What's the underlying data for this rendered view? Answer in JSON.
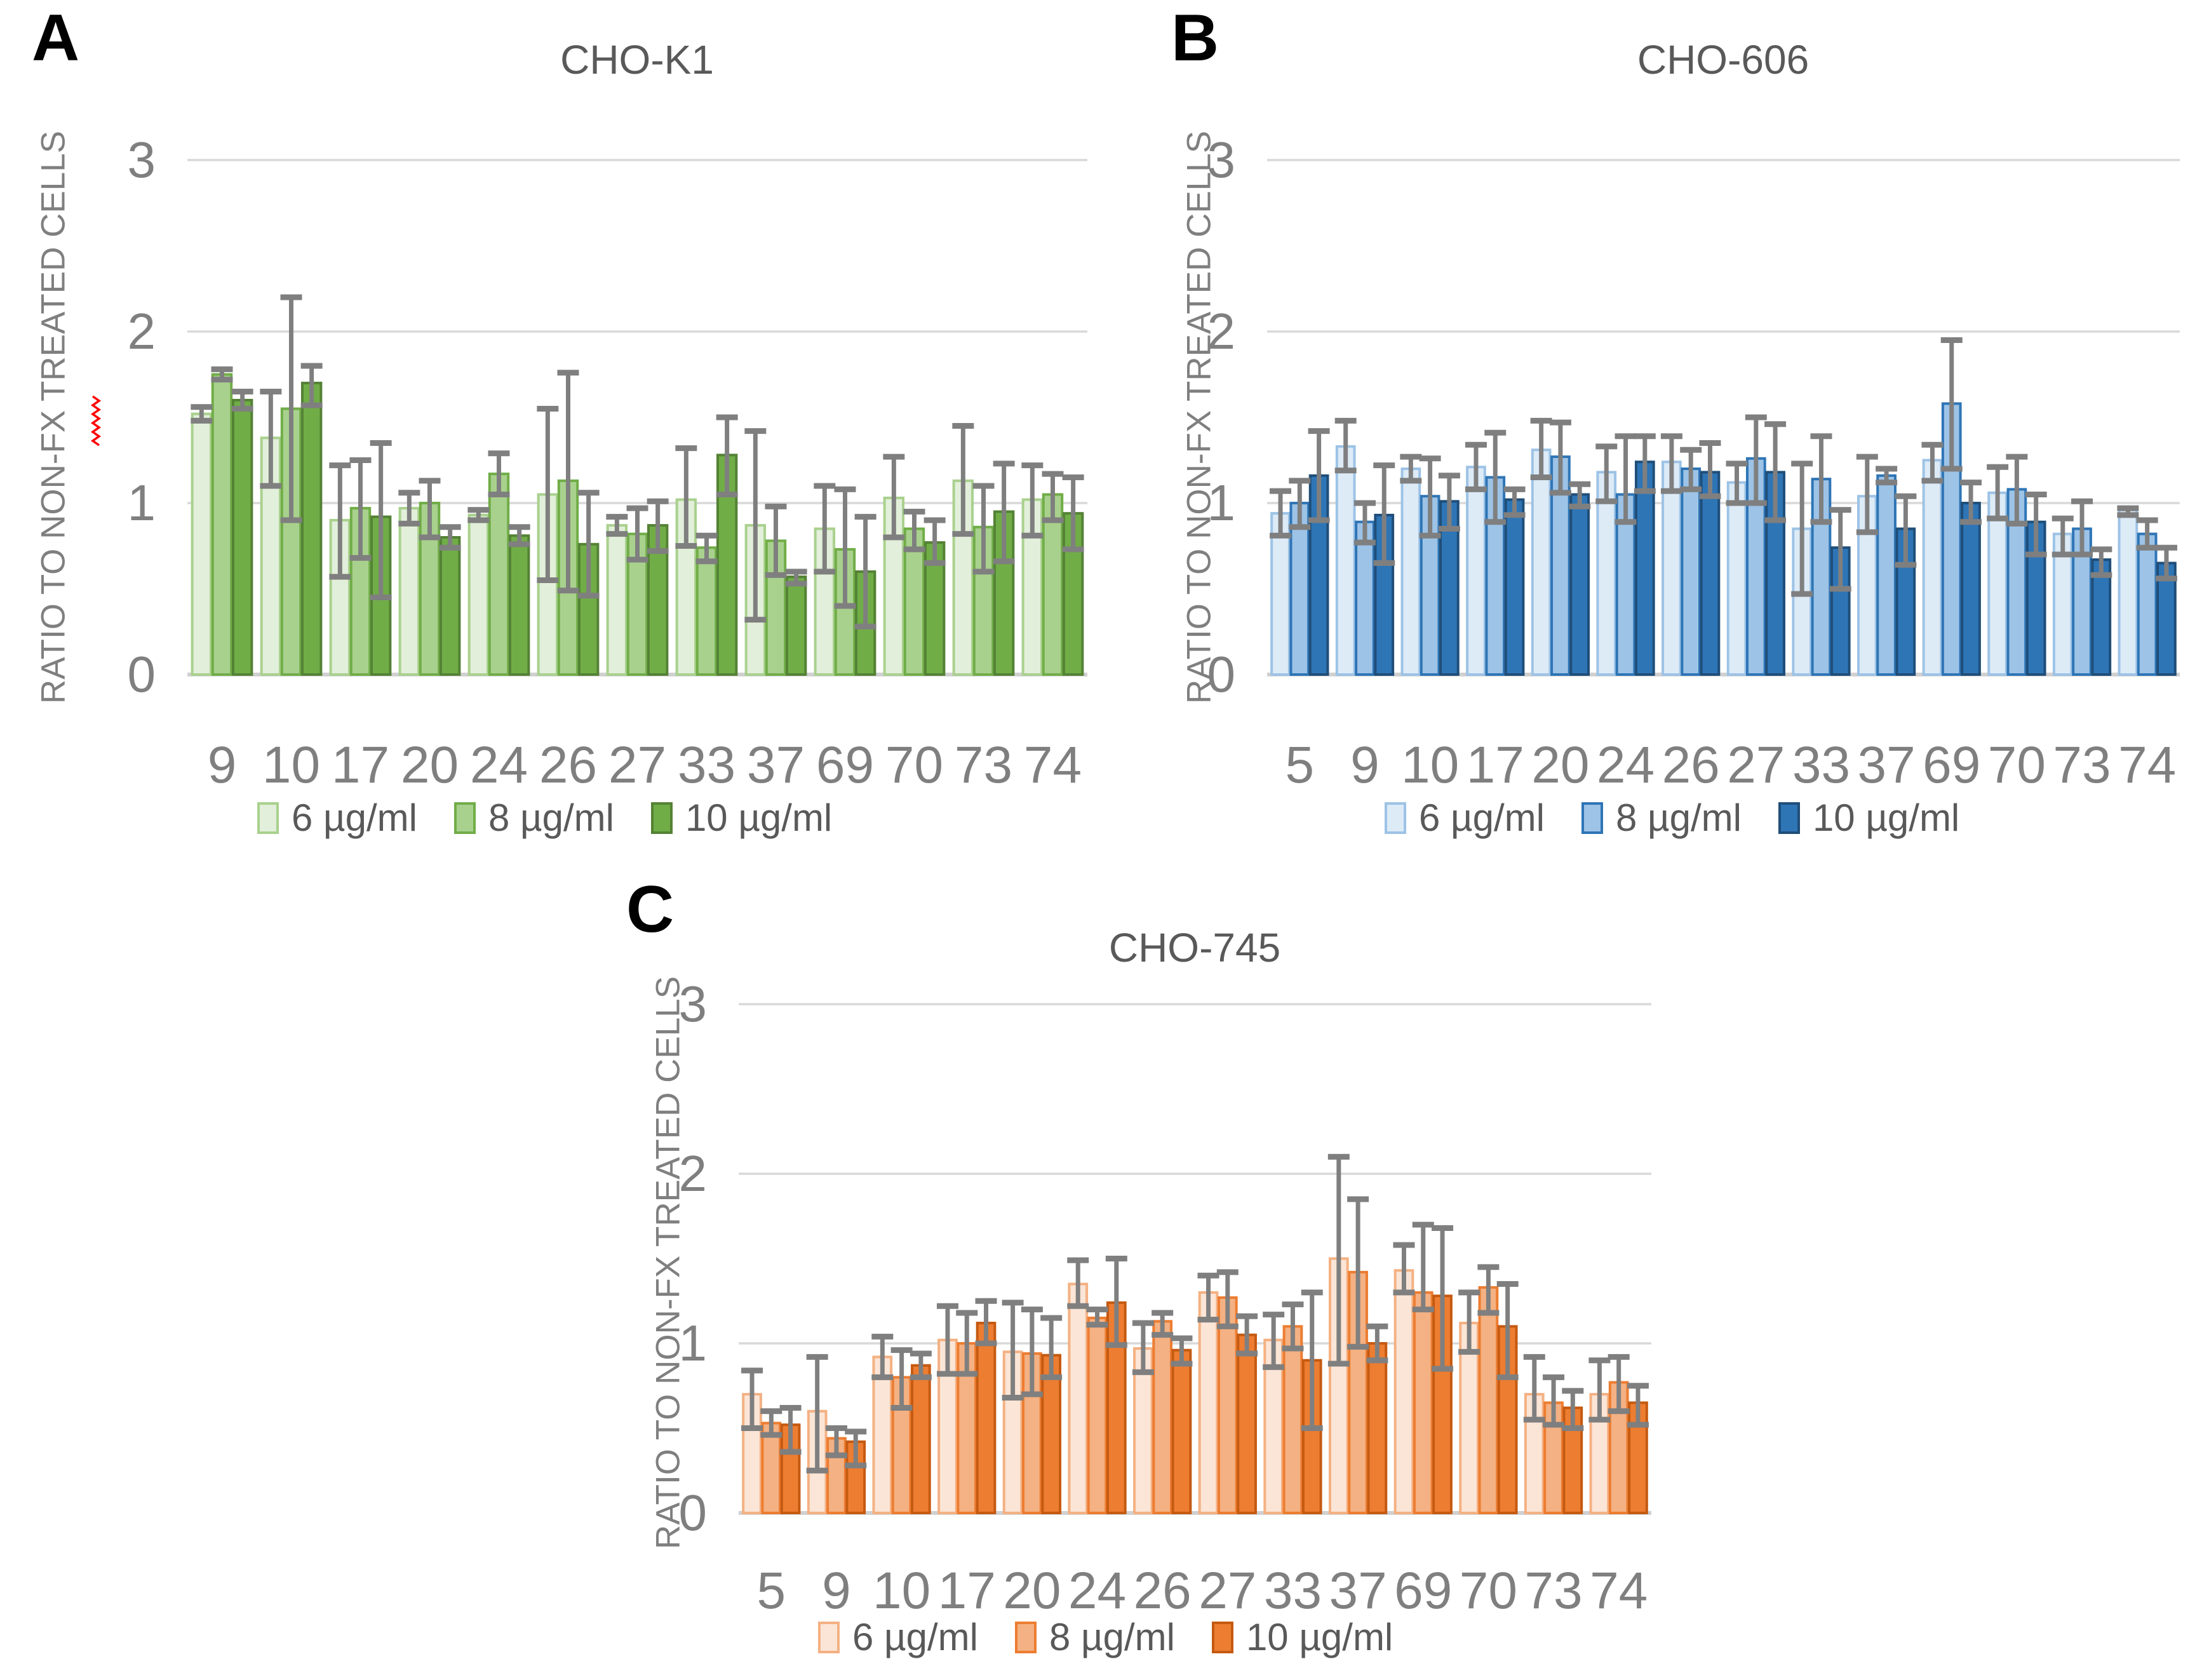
{
  "figure_type": "three-panel grouped bar chart with error bars",
  "style": {
    "gridline_color": "#d9d9d9",
    "baseline_color": "#d0d0d0",
    "error_bar_color": "#7f7f7f",
    "axis_text_color": "#7f7f7f",
    "title_text_color": "#595959",
    "legend_text_color": "#595959",
    "panel_letter_color": "#000000",
    "squiggle_color": "#ff0000"
  },
  "legend_labels": [
    "6 µg/ml",
    "8 µg/ml",
    "10 µg/ml"
  ],
  "chart_data": [
    {
      "type": "bar",
      "panel_label": "A",
      "title": "CHO-K1",
      "ylabel": "RATIO TO NON-FX TREATED CELLS",
      "xlabel": "",
      "ylim": [
        0,
        3
      ],
      "yticks": [
        "3",
        "2",
        "1",
        "0"
      ],
      "ytick_values": [
        3,
        2,
        1,
        0
      ],
      "grid": true,
      "legend_position": "bottom",
      "error_bars": true,
      "categories": [
        "9",
        "10",
        "17",
        "20",
        "24",
        "26",
        "27",
        "33",
        "37",
        "69",
        "70",
        "73",
        "74"
      ],
      "series": [
        {
          "name": "6 µg/ml",
          "fill": "#e2efda",
          "border": "#a9d18e",
          "values": [
            1.52,
            1.38,
            0.9,
            0.97,
            0.93,
            1.05,
            0.87,
            1.02,
            0.87,
            0.85,
            1.03,
            1.13,
            1.02
          ],
          "err_lo": [
            1.48,
            1.1,
            0.57,
            0.88,
            0.9,
            0.55,
            0.82,
            0.75,
            0.32,
            0.6,
            0.8,
            0.82,
            0.81
          ],
          "err_hi": [
            1.56,
            1.65,
            1.22,
            1.06,
            0.96,
            1.55,
            0.92,
            1.32,
            1.42,
            1.1,
            1.27,
            1.45,
            1.22
          ]
        },
        {
          "name": "8 µg/ml",
          "fill": "#a9d18e",
          "border": "#70ad47",
          "values": [
            1.75,
            1.55,
            0.97,
            1.0,
            1.17,
            1.13,
            0.82,
            0.74,
            0.78,
            0.73,
            0.85,
            0.86,
            1.05
          ],
          "err_lo": [
            1.72,
            0.9,
            0.68,
            0.8,
            1.05,
            0.49,
            0.67,
            0.66,
            0.58,
            0.4,
            0.73,
            0.6,
            0.9
          ],
          "err_hi": [
            1.78,
            2.2,
            1.25,
            1.13,
            1.29,
            1.76,
            0.97,
            0.81,
            0.98,
            1.08,
            0.95,
            1.1,
            1.17
          ]
        },
        {
          "name": "10 µg/ml",
          "fill": "#70ad47",
          "border": "#548235",
          "values": [
            1.6,
            1.7,
            0.92,
            0.8,
            0.81,
            0.76,
            0.87,
            1.28,
            0.57,
            0.6,
            0.77,
            0.95,
            0.94
          ],
          "err_lo": [
            1.55,
            1.57,
            0.45,
            0.74,
            0.76,
            0.46,
            0.72,
            1.05,
            0.53,
            0.28,
            0.65,
            0.66,
            0.73
          ],
          "err_hi": [
            1.65,
            1.8,
            1.35,
            0.86,
            0.86,
            1.06,
            1.01,
            1.5,
            0.6,
            0.92,
            0.9,
            1.23,
            1.15
          ]
        }
      ]
    },
    {
      "type": "bar",
      "panel_label": "B",
      "title": "CHO-606",
      "ylabel": "RATIO TO NON-FX TREATED CELLS",
      "xlabel": "",
      "ylim": [
        0,
        3
      ],
      "yticks": [
        "3",
        "2",
        "1",
        "0"
      ],
      "ytick_values": [
        3,
        2,
        1,
        0
      ],
      "grid": true,
      "legend_position": "bottom",
      "error_bars": true,
      "categories": [
        "5",
        "9",
        "10",
        "17",
        "20",
        "24",
        "26",
        "27",
        "33",
        "37",
        "69",
        "70",
        "73",
        "74"
      ],
      "series": [
        {
          "name": "6 µg/ml",
          "fill": "#ddebf7",
          "border": "#9dc3e6",
          "values": [
            0.94,
            1.33,
            1.2,
            1.21,
            1.31,
            1.18,
            1.24,
            1.12,
            0.85,
            1.04,
            1.25,
            1.06,
            0.82,
            0.96
          ],
          "err_lo": [
            0.81,
            1.19,
            1.13,
            1.08,
            1.15,
            1.01,
            1.07,
            1.0,
            0.47,
            0.83,
            1.13,
            0.91,
            0.7,
            0.93
          ],
          "err_hi": [
            1.07,
            1.48,
            1.27,
            1.34,
            1.48,
            1.33,
            1.39,
            1.23,
            1.23,
            1.27,
            1.34,
            1.21,
            0.91,
            0.97
          ]
        },
        {
          "name": "8 µg/ml",
          "fill": "#9dc3e6",
          "border": "#2e75b6",
          "values": [
            1.0,
            0.89,
            1.04,
            1.15,
            1.27,
            1.05,
            1.2,
            1.26,
            1.14,
            1.16,
            1.58,
            1.08,
            0.85,
            0.82
          ],
          "err_lo": [
            0.86,
            0.77,
            0.81,
            0.89,
            1.06,
            0.89,
            1.08,
            1.0,
            0.89,
            1.12,
            1.2,
            0.88,
            0.7,
            0.74
          ],
          "err_hi": [
            1.13,
            1.0,
            1.26,
            1.41,
            1.47,
            1.39,
            1.31,
            1.5,
            1.39,
            1.2,
            1.95,
            1.27,
            1.01,
            0.9
          ]
        },
        {
          "name": "10 µg/ml",
          "fill": "#2e75b6",
          "border": "#1f4e79",
          "values": [
            1.16,
            0.93,
            1.01,
            1.02,
            1.05,
            1.24,
            1.18,
            1.18,
            0.74,
            0.85,
            1.0,
            0.89,
            0.67,
            0.65
          ],
          "err_lo": [
            0.9,
            0.65,
            0.85,
            0.93,
            0.98,
            1.07,
            1.04,
            0.9,
            0.5,
            0.64,
            0.89,
            0.7,
            0.58,
            0.56
          ],
          "err_hi": [
            1.42,
            1.22,
            1.16,
            1.08,
            1.11,
            1.39,
            1.35,
            1.46,
            0.96,
            1.04,
            1.12,
            1.05,
            0.73,
            0.74
          ]
        }
      ]
    },
    {
      "type": "bar",
      "panel_label": "C",
      "title": "CHO-745",
      "ylabel": "RATIO TO NON-FX TREATED CELLS",
      "xlabel": "",
      "ylim": [
        0,
        3
      ],
      "yticks": [
        "3",
        "2",
        "1",
        "0"
      ],
      "ytick_values": [
        3,
        2,
        1,
        0
      ],
      "grid": true,
      "legend_position": "bottom",
      "error_bars": true,
      "categories": [
        "5",
        "9",
        "10",
        "17",
        "20",
        "24",
        "26",
        "27",
        "33",
        "37",
        "69",
        "70",
        "73",
        "74"
      ],
      "series": [
        {
          "name": "6 µg/ml",
          "fill": "#fbe5d6",
          "border": "#f4b183",
          "values": [
            0.7,
            0.6,
            0.92,
            1.02,
            0.95,
            1.35,
            0.97,
            1.3,
            1.02,
            1.5,
            1.43,
            1.12,
            0.7,
            0.7
          ],
          "err_lo": [
            0.5,
            0.25,
            0.8,
            0.82,
            0.68,
            1.22,
            0.83,
            1.14,
            0.86,
            0.88,
            1.3,
            0.95,
            0.55,
            0.55
          ],
          "err_hi": [
            0.84,
            0.92,
            1.04,
            1.22,
            1.24,
            1.49,
            1.12,
            1.4,
            1.17,
            2.1,
            1.58,
            1.3,
            0.92,
            0.9
          ]
        },
        {
          "name": "8 µg/ml",
          "fill": "#f4b183",
          "border": "#ed7d31",
          "values": [
            0.53,
            0.44,
            0.8,
            1.0,
            0.94,
            1.15,
            1.13,
            1.27,
            1.1,
            1.42,
            1.3,
            1.33,
            0.65,
            0.77
          ],
          "err_lo": [
            0.46,
            0.34,
            0.62,
            0.82,
            0.7,
            1.11,
            1.05,
            1.1,
            0.97,
            0.98,
            1.2,
            1.18,
            0.52,
            0.6
          ],
          "err_hi": [
            0.6,
            0.5,
            0.96,
            1.18,
            1.2,
            1.2,
            1.18,
            1.42,
            1.23,
            1.85,
            1.7,
            1.45,
            0.8,
            0.92
          ]
        },
        {
          "name": "10 µg/ml",
          "fill": "#ed7d31",
          "border": "#c55a11",
          "values": [
            0.52,
            0.42,
            0.87,
            1.12,
            0.93,
            1.24,
            0.96,
            1.05,
            0.9,
            1.0,
            1.28,
            1.1,
            0.62,
            0.65
          ],
          "err_lo": [
            0.36,
            0.28,
            0.8,
            1.0,
            0.8,
            0.99,
            0.88,
            0.94,
            0.5,
            0.9,
            0.85,
            0.8,
            0.5,
            0.52
          ],
          "err_hi": [
            0.62,
            0.48,
            0.94,
            1.25,
            1.15,
            1.5,
            1.03,
            1.16,
            1.3,
            1.1,
            1.68,
            1.35,
            0.72,
            0.75
          ]
        }
      ]
    }
  ]
}
